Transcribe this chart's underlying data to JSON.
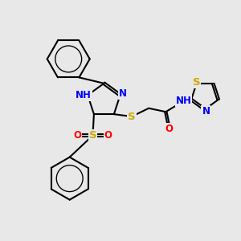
{
  "bg_color": "#e8e8e8",
  "bond_color": "#000000",
  "bond_lw": 1.5,
  "atom_colors": {
    "N": "#0000ff",
    "S": "#ccaa00",
    "O": "#ff0000",
    "H": "#5a9090",
    "C": "#000000"
  },
  "font_size": 8.5,
  "canvas_xlim": [
    0,
    10
  ],
  "canvas_ylim": [
    0,
    10
  ]
}
